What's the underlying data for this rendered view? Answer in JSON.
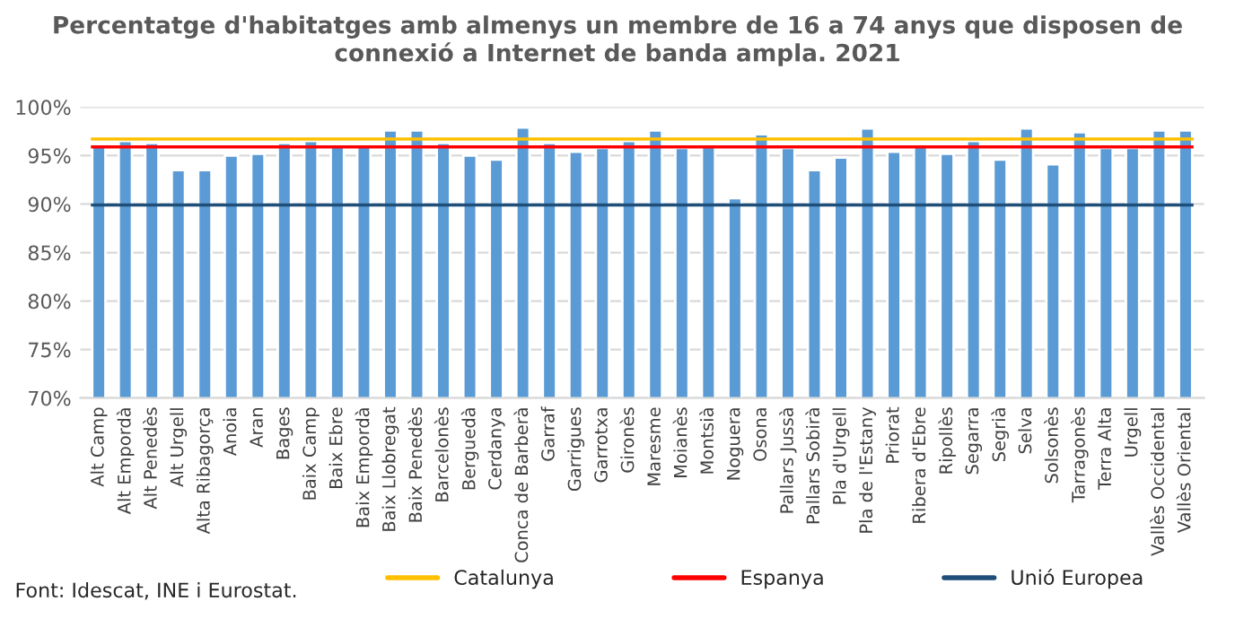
{
  "chart_data": {
    "type": "bar",
    "title": "Percentatge d'habitatges amb almenys un membre de 16 a 74 anys que disposen de\nconnexió a Internet de banda ampla. 2021",
    "categories": [
      "Alt Camp",
      "Alt Empordà",
      "Alt Penedès",
      "Alt Urgell",
      "Alta Ribagorça",
      "Anoia",
      "Aran",
      "Bages",
      "Baix Camp",
      "Baix Ebre",
      "Baix Empordà",
      "Baix Llobregat",
      "Baix Penedès",
      "Barcelonès",
      "Berguedà",
      "Cerdanya",
      "Conca de Barberà",
      "Garraf",
      "Garrigues",
      "Garrotxa",
      "Gironès",
      "Maresme",
      "Moianès",
      "Montsià",
      "Noguera",
      "Osona",
      "Pallars Jussà",
      "Pallars Sobirà",
      "Pla d'Urgell",
      "Pla de l'Estany",
      "Priorat",
      "Ribera d'Ebre",
      "Ripollès",
      "Segarra",
      "Segrià",
      "Selva",
      "Solsonès",
      "Tarragonès",
      "Terra Alta",
      "Urgell",
      "Vallès Occidental",
      "Vallès Oriental"
    ],
    "values": [
      96.1,
      96.5,
      96.3,
      93.5,
      93.5,
      95.0,
      95.2,
      96.3,
      96.5,
      96.1,
      95.9,
      97.6,
      97.6,
      96.3,
      95.0,
      94.6,
      97.9,
      96.3,
      95.4,
      95.8,
      96.5,
      97.6,
      95.8,
      96.1,
      90.6,
      97.2,
      95.8,
      93.5,
      94.8,
      97.8,
      95.4,
      96.1,
      95.2,
      96.5,
      94.6,
      97.8,
      94.1,
      97.4,
      95.8,
      95.8,
      97.6,
      97.6
    ],
    "color": "#5b9bd5",
    "ylim": [
      70,
      100
    ],
    "yticks": [
      {
        "value": 70,
        "label": "70%"
      },
      {
        "value": 75,
        "label": "75%"
      },
      {
        "value": 80,
        "label": "80%"
      },
      {
        "value": 85,
        "label": "85%"
      },
      {
        "value": 90,
        "label": "90%"
      },
      {
        "value": 95,
        "label": "95%"
      },
      {
        "value": 100,
        "label": "100%"
      }
    ],
    "grid": "y",
    "legend": "bottom",
    "ref_lines": [
      {
        "axis": "y",
        "value": 96.7,
        "label": "Catalunya",
        "color": "#ffc000"
      },
      {
        "axis": "y",
        "value": 95.9,
        "label": "Espanya",
        "color": "#ff0000"
      },
      {
        "axis": "y",
        "value": 89.9,
        "label": "Unió Europea",
        "color": "#1f4e79"
      }
    ],
    "annotations": [
      "Font: Idescat, INE i Eurostat."
    ]
  }
}
